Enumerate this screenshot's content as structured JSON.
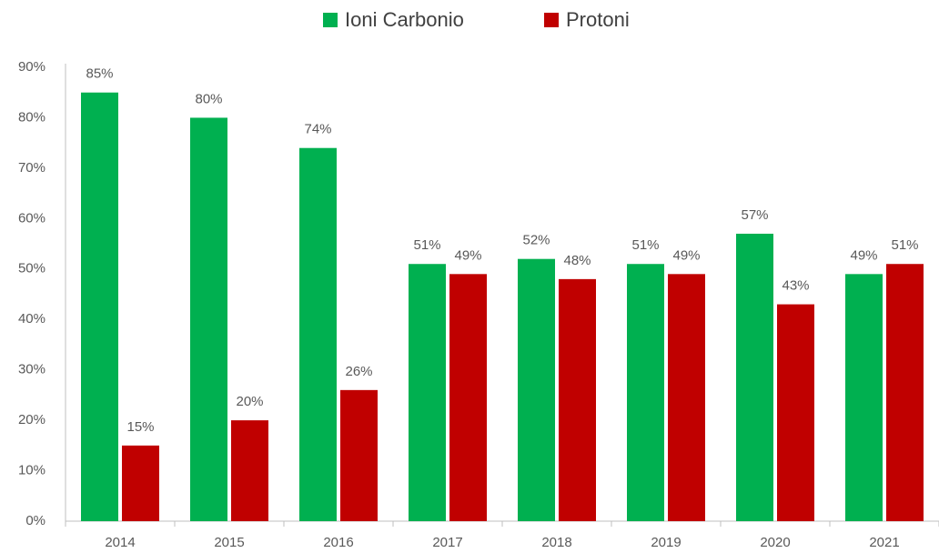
{
  "chart_data": {
    "type": "bar",
    "categories": [
      "2014",
      "2015",
      "2016",
      "2017",
      "2018",
      "2019",
      "2020",
      "2021"
    ],
    "series": [
      {
        "name": "Ioni Carbonio",
        "color": "#00b050",
        "values": [
          85,
          80,
          74,
          51,
          52,
          51,
          57,
          49
        ],
        "value_labels": [
          "85%",
          "80%",
          "74%",
          "51%",
          "52%",
          "51%",
          "57%",
          "49%"
        ]
      },
      {
        "name": "Protoni",
        "color": "#c00000",
        "values": [
          15,
          20,
          26,
          49,
          48,
          49,
          43,
          51
        ],
        "value_labels": [
          "15%",
          "20%",
          "26%",
          "49%",
          "48%",
          "49%",
          "43%",
          "51%"
        ]
      }
    ],
    "ylim": [
      0,
      90
    ],
    "yticks": [
      {
        "value": 0,
        "label": "0%"
      },
      {
        "value": 10,
        "label": "10%"
      },
      {
        "value": 20,
        "label": "20%"
      },
      {
        "value": 30,
        "label": "30%"
      },
      {
        "value": 40,
        "label": "40%"
      },
      {
        "value": 50,
        "label": "50%"
      },
      {
        "value": 60,
        "label": "60%"
      },
      {
        "value": 70,
        "label": "70%"
      },
      {
        "value": 80,
        "label": "80%"
      },
      {
        "value": 90,
        "label": "90%"
      }
    ],
    "grid": false,
    "legend": "top"
  }
}
